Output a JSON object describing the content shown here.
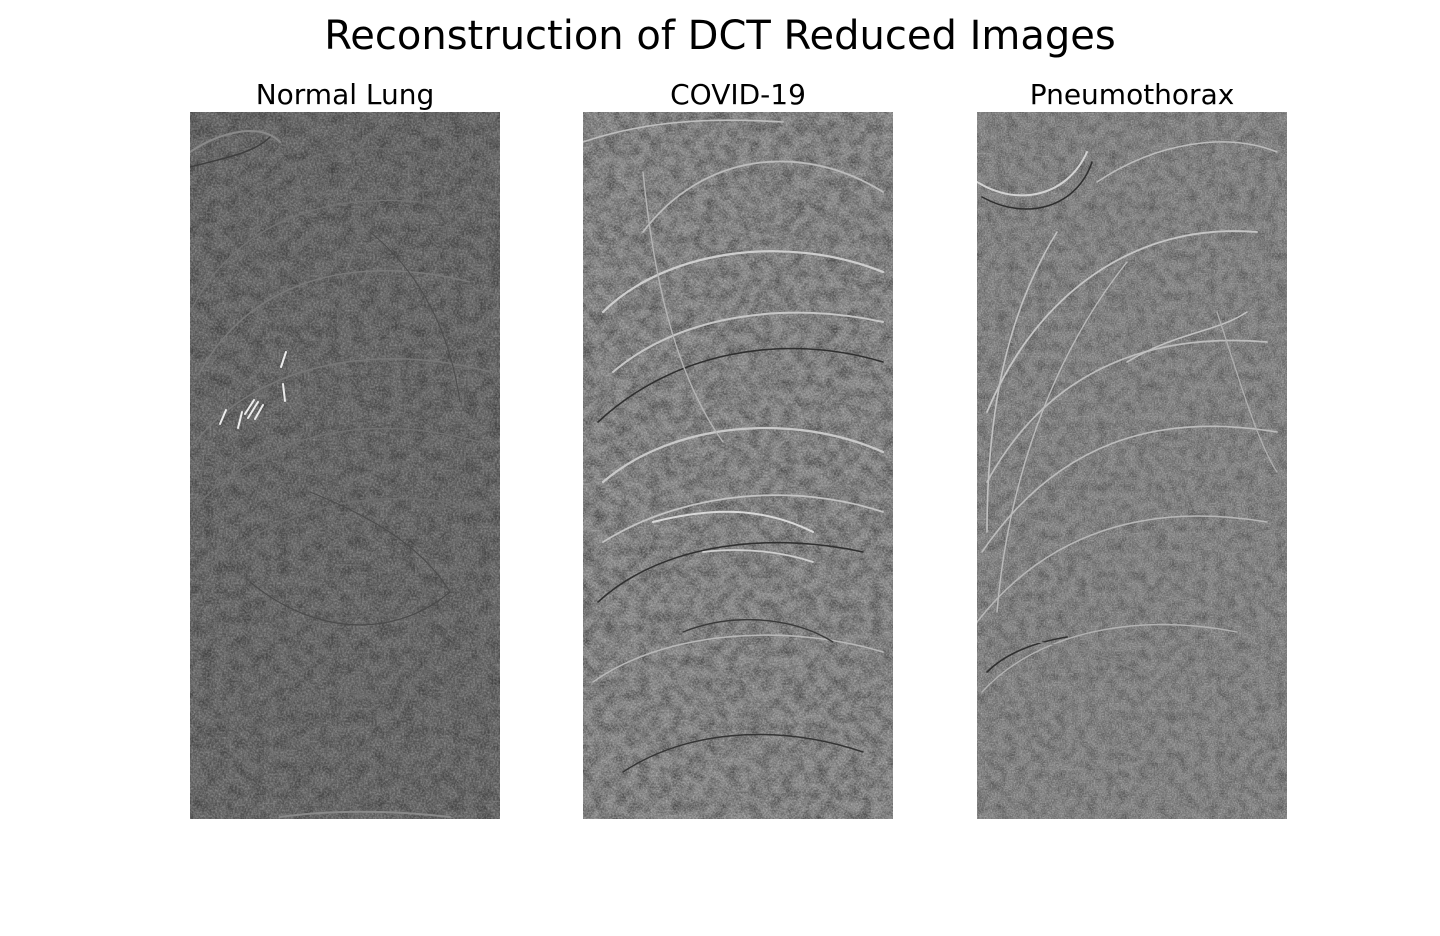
{
  "figure": {
    "title": "Reconstruction of DCT Reduced Images"
  },
  "panels": [
    {
      "title": "Normal Lung"
    },
    {
      "title": "COVID-19"
    },
    {
      "title": "Pneumothorax"
    }
  ]
}
